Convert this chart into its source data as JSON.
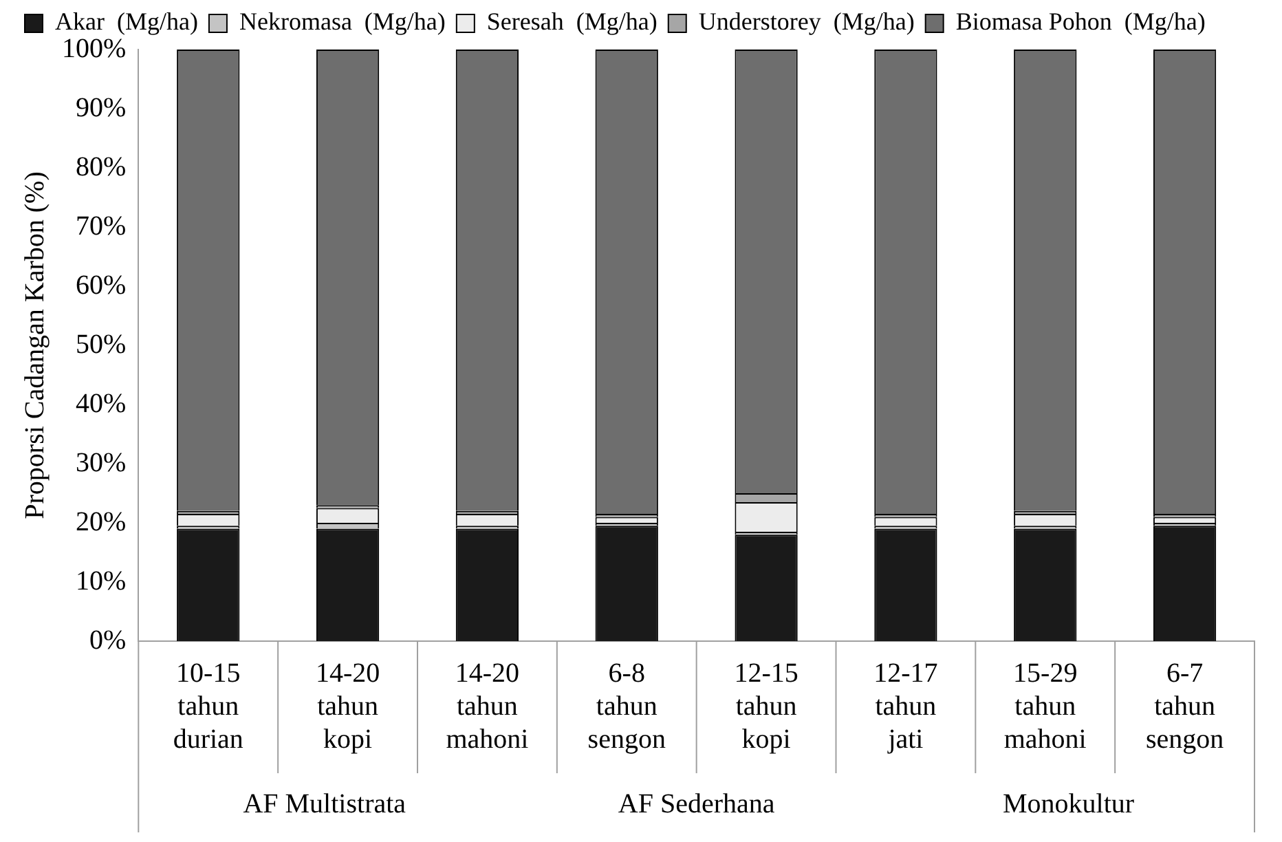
{
  "chart_data": {
    "type": "bar",
    "stacked": true,
    "ylabel": "Proporsi Cadangan Karbon (%)",
    "categories": [
      "10-15\ntahun\ndurian",
      "14-20\ntahun\nkopi",
      "14-20\ntahun\nmahoni",
      "6-8\ntahun\nsengon",
      "12-15\ntahun\nkopi",
      "12-17\ntahun\njati",
      "15-29\ntahun\nmahoni",
      "6-7\ntahun\nsengon"
    ],
    "series": [
      {
        "name": "Akar  (Mg/ha)",
        "color": "#1a1a1a",
        "values": [
          19,
          19,
          19,
          19.5,
          18,
          19,
          19,
          19.5
        ]
      },
      {
        "name": "Nekromasa  (Mg/ha)",
        "color": "#c4c4c4",
        "values": [
          0.5,
          1,
          0.5,
          0.5,
          0.5,
          0.5,
          0.5,
          0.5
        ]
      },
      {
        "name": "Seresah  (Mg/ha)",
        "color": "#ececec",
        "values": [
          2,
          2.5,
          2,
          1,
          5,
          1.5,
          2,
          1
        ]
      },
      {
        "name": "Understorey  (Mg/ha)",
        "color": "#a6a6a6",
        "values": [
          0.5,
          0.5,
          0.5,
          0.5,
          1.5,
          0.5,
          0.5,
          0.5
        ]
      },
      {
        "name": "Biomasa Pohon  (Mg/ha)",
        "color": "#6e6e6e",
        "values": [
          78,
          77,
          78,
          78.5,
          75,
          78.5,
          78,
          78.5
        ]
      }
    ],
    "ylim": [
      0,
      100
    ],
    "yticks": [
      {
        "value": 0,
        "label": "0%"
      },
      {
        "value": 10,
        "label": "10%"
      },
      {
        "value": 20,
        "label": "20%"
      },
      {
        "value": 30,
        "label": "30%"
      },
      {
        "value": 40,
        "label": "40%"
      },
      {
        "value": 50,
        "label": "50%"
      },
      {
        "value": 60,
        "label": "60%"
      },
      {
        "value": 70,
        "label": "70%"
      },
      {
        "value": 80,
        "label": "80%"
      },
      {
        "value": 90,
        "label": "90%"
      },
      {
        "value": 100,
        "label": "100%"
      }
    ],
    "annotations": [
      "AF Multistrata",
      "AF Sederhana",
      "Monokultur"
    ],
    "grid": false,
    "legend": "top left"
  }
}
